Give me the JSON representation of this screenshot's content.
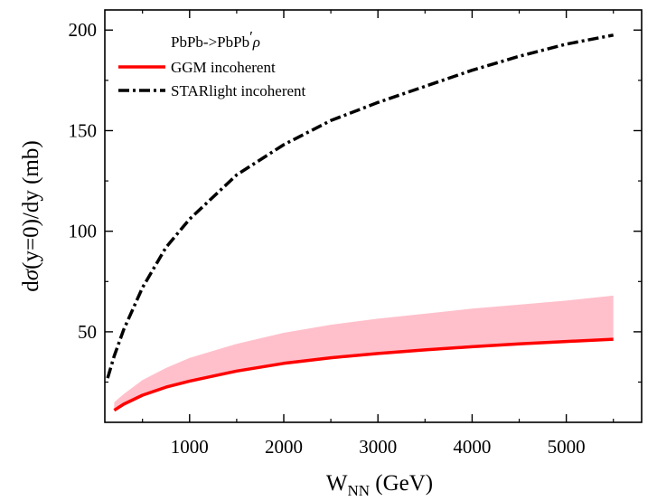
{
  "chart_data": {
    "type": "line",
    "title": "",
    "xlabel": {
      "main": "W",
      "sub": "NN",
      "unit": " (GeV)"
    },
    "ylabel": {
      "prefix": "d",
      "sigma": "σ",
      "suffix": "(y=0)/dy (mb)"
    },
    "xlim": [
      100,
      5800
    ],
    "ylim": [
      5,
      210
    ],
    "x_ticks": [
      1000,
      2000,
      3000,
      4000,
      5000
    ],
    "y_ticks": [
      50,
      100,
      150,
      200
    ],
    "grid": false,
    "legend_placement": "top-left",
    "legend_header": {
      "main": "PbPb->PbPb",
      "prime": "′",
      "rho": "ρ"
    },
    "series": [
      {
        "name": "GGM incoherent",
        "style": "solid",
        "color": "#ff0000",
        "x": [
          200,
          300,
          500,
          750,
          1000,
          1500,
          2000,
          2500,
          3000,
          3500,
          4000,
          4500,
          5000,
          5500
        ],
        "y": [
          11,
          14,
          18.5,
          22.5,
          25.5,
          30.5,
          34.3,
          37.1,
          39.2,
          41,
          42.6,
          44,
          45.2,
          46.3
        ]
      },
      {
        "name": "STARlight incoherent",
        "style": "dash-dot",
        "color": "#000000",
        "x": [
          130,
          200,
          300,
          500,
          750,
          1000,
          1500,
          2000,
          2500,
          3000,
          3500,
          4000,
          4500,
          5000,
          5500
        ],
        "y": [
          27,
          38,
          51,
          72,
          92,
          106,
          128,
          143,
          155,
          164,
          172,
          180,
          187,
          193,
          197.5
        ]
      }
    ],
    "band": {
      "color": "#ffc0cb",
      "x": [
        200,
        300,
        500,
        750,
        1000,
        1500,
        2000,
        2500,
        3000,
        3500,
        4000,
        4500,
        5000,
        5500
      ],
      "lower": [
        11,
        14,
        18.5,
        22.5,
        25.5,
        30.5,
        34.3,
        37.1,
        39.2,
        41,
        42.6,
        44,
        45.2,
        46.3
      ],
      "upper": [
        15,
        19,
        26,
        32,
        37,
        44,
        49.5,
        53.5,
        56.5,
        59,
        61.5,
        63.5,
        65.5,
        68
      ]
    }
  }
}
